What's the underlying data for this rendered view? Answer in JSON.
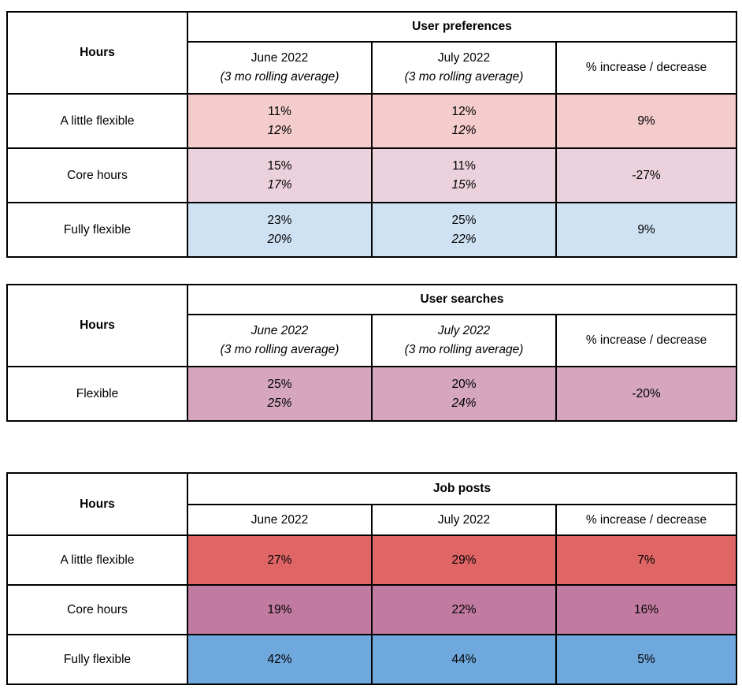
{
  "tables": [
    {
      "title": "User preferences",
      "hours": "Hours",
      "col_june": {
        "line1": "June 2022",
        "line2": "(3 mo rolling average)"
      },
      "col_july": {
        "line1": "July 2022",
        "line2": "(3 mo rolling average)"
      },
      "col_change": "% increase / decrease",
      "rows": [
        {
          "label": "A little flexible",
          "color": "#f4cccc",
          "june1": "11%",
          "june2": "12%",
          "july1": "12%",
          "july2": "12%",
          "change": "9%"
        },
        {
          "label": "Core hours",
          "color": "#ead1dc",
          "june1": "15%",
          "june2": "17%",
          "july1": "11%",
          "july2": "15%",
          "change": "-27%"
        },
        {
          "label": "Fully flexible",
          "color": "#cfe2f3",
          "june1": "23%",
          "june2": "20%",
          "july1": "25%",
          "july2": "22%",
          "change": "9%"
        }
      ]
    },
    {
      "title": "User searches",
      "hours": "Hours",
      "col_june": {
        "line1": "June 2022",
        "line2": "(3 mo rolling average)"
      },
      "col_july": {
        "line1": "July 2022",
        "line2": "(3 mo rolling average)"
      },
      "col_change": "% increase / decrease",
      "rows": [
        {
          "label": "Flexible",
          "color": "#d5a6bd",
          "june1": "25%",
          "june2": "25%",
          "july1": "20%",
          "july2": "24%",
          "change": "-20%"
        }
      ]
    },
    {
      "title": "Job posts",
      "hours": "Hours",
      "col_june": "June 2022",
      "col_july": "July 2022",
      "col_change": "% increase / decrease",
      "rows": [
        {
          "label": "A little flexible",
          "color": "#e06666",
          "june": "27%",
          "july": "29%",
          "change": "7%"
        },
        {
          "label": "Core hours",
          "color": "#c27ba0",
          "june": "19%",
          "july": "22%",
          "change": "16%"
        },
        {
          "label": "Fully flexible",
          "color": "#6fa8dc",
          "june": "42%",
          "july": "44%",
          "change": "5%"
        }
      ]
    }
  ]
}
